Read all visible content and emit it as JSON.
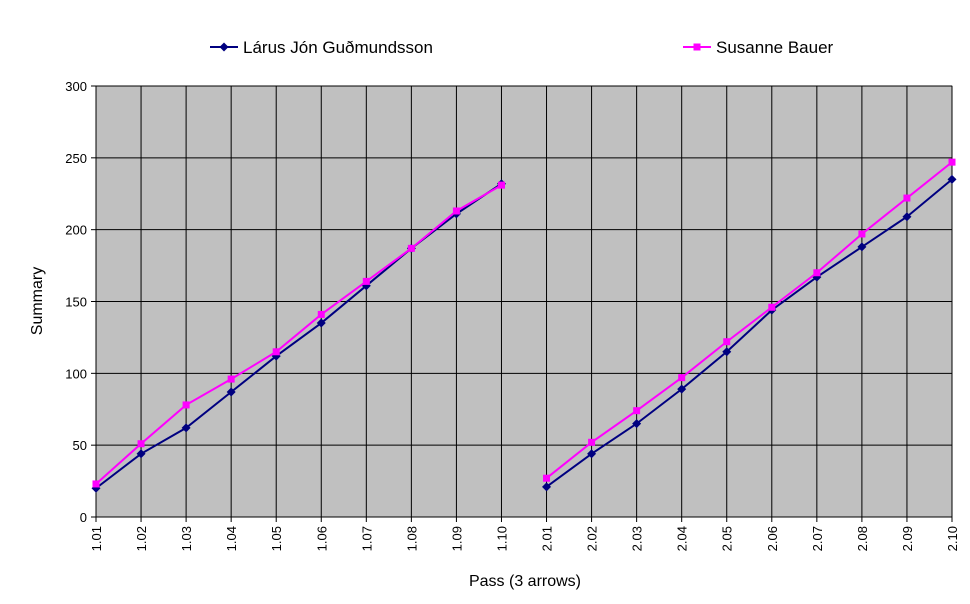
{
  "chart_data": {
    "type": "line",
    "title": "",
    "xlabel": "Pass (3 arrows)",
    "ylabel": "Summary",
    "ylim": [
      0,
      300
    ],
    "yticks": [
      0,
      50,
      100,
      150,
      200,
      250,
      300
    ],
    "grid": true,
    "legend_position": "top",
    "plot_background": "#c0c0c0",
    "categories": [
      "1.01",
      "1.02",
      "1.03",
      "1.04",
      "1.05",
      "1.06",
      "1.07",
      "1.08",
      "1.09",
      "1.10",
      "2.01",
      "2.02",
      "2.03",
      "2.04",
      "2.05",
      "2.06",
      "2.07",
      "2.08",
      "2.09",
      "2.10"
    ],
    "series": [
      {
        "name": "Lárus Jón Guðmundsson",
        "color": "#000080",
        "marker": "diamond",
        "values": [
          20,
          44,
          62,
          87,
          112,
          135,
          161,
          187,
          211,
          232,
          21,
          44,
          65,
          89,
          115,
          144,
          167,
          188,
          209,
          235
        ]
      },
      {
        "name": "Susanne Bauer",
        "color": "#ff00ff",
        "marker": "square",
        "values": [
          23,
          51,
          78,
          96,
          115,
          141,
          164,
          187,
          213,
          231,
          27,
          52,
          74,
          97,
          122,
          146,
          170,
          197,
          222,
          247
        ]
      }
    ],
    "segments": [
      [
        0,
        9
      ],
      [
        10,
        19
      ]
    ]
  }
}
